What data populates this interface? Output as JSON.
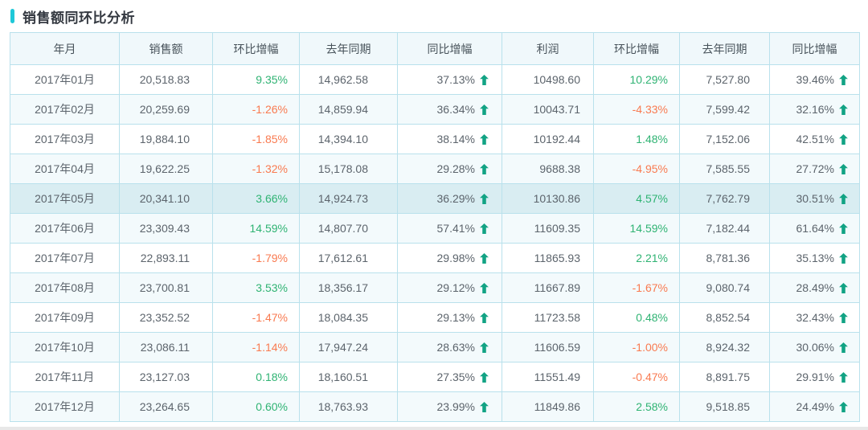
{
  "page": {
    "title": "销售额同环比分析",
    "accent_color": "#1ec8d8"
  },
  "colors": {
    "positive": "#2fb373",
    "negative": "#f97a50",
    "arrow": "#12a384",
    "border": "#b9e1ec",
    "header_bg": "#f0f8fb",
    "stripe_bg": "#f3fafc",
    "highlight_bg": "#d9edf2"
  },
  "icons": {
    "yoy_indicator": "arrow-up-icon"
  },
  "table": {
    "highlighted_row_index": 4,
    "columns": [
      {
        "key": "month",
        "label": "年月",
        "type": "month"
      },
      {
        "key": "sales",
        "label": "销售额",
        "type": "num"
      },
      {
        "key": "sales_mom",
        "label": "环比增幅",
        "type": "pct"
      },
      {
        "key": "sales_last_year",
        "label": "去年同期",
        "type": "num"
      },
      {
        "key": "sales_yoy",
        "label": "同比增幅",
        "type": "yoy"
      },
      {
        "key": "profit",
        "label": "利润",
        "type": "num"
      },
      {
        "key": "profit_mom",
        "label": "环比增幅",
        "type": "pct"
      },
      {
        "key": "profit_last_year",
        "label": "去年同期",
        "type": "num"
      },
      {
        "key": "profit_yoy",
        "label": "同比增幅",
        "type": "yoy"
      }
    ],
    "rows": [
      {
        "month": "2017年01月",
        "sales": "20,518.83",
        "sales_mom": "9.35%",
        "sales_last_year": "14,962.58",
        "sales_yoy": "37.13%",
        "profit": "10498.60",
        "profit_mom": "10.29%",
        "profit_last_year": "7,527.80",
        "profit_yoy": "39.46%"
      },
      {
        "month": "2017年02月",
        "sales": "20,259.69",
        "sales_mom": "-1.26%",
        "sales_last_year": "14,859.94",
        "sales_yoy": "36.34%",
        "profit": "10043.71",
        "profit_mom": "-4.33%",
        "profit_last_year": "7,599.42",
        "profit_yoy": "32.16%"
      },
      {
        "month": "2017年03月",
        "sales": "19,884.10",
        "sales_mom": "-1.85%",
        "sales_last_year": "14,394.10",
        "sales_yoy": "38.14%",
        "profit": "10192.44",
        "profit_mom": "1.48%",
        "profit_last_year": "7,152.06",
        "profit_yoy": "42.51%"
      },
      {
        "month": "2017年04月",
        "sales": "19,622.25",
        "sales_mom": "-1.32%",
        "sales_last_year": "15,178.08",
        "sales_yoy": "29.28%",
        "profit": "9688.38",
        "profit_mom": "-4.95%",
        "profit_last_year": "7,585.55",
        "profit_yoy": "27.72%"
      },
      {
        "month": "2017年05月",
        "sales": "20,341.10",
        "sales_mom": "3.66%",
        "sales_last_year": "14,924.73",
        "sales_yoy": "36.29%",
        "profit": "10130.86",
        "profit_mom": "4.57%",
        "profit_last_year": "7,762.79",
        "profit_yoy": "30.51%"
      },
      {
        "month": "2017年06月",
        "sales": "23,309.43",
        "sales_mom": "14.59%",
        "sales_last_year": "14,807.70",
        "sales_yoy": "57.41%",
        "profit": "11609.35",
        "profit_mom": "14.59%",
        "profit_last_year": "7,182.44",
        "profit_yoy": "61.64%"
      },
      {
        "month": "2017年07月",
        "sales": "22,893.11",
        "sales_mom": "-1.79%",
        "sales_last_year": "17,612.61",
        "sales_yoy": "29.98%",
        "profit": "11865.93",
        "profit_mom": "2.21%",
        "profit_last_year": "8,781.36",
        "profit_yoy": "35.13%"
      },
      {
        "month": "2017年08月",
        "sales": "23,700.81",
        "sales_mom": "3.53%",
        "sales_last_year": "18,356.17",
        "sales_yoy": "29.12%",
        "profit": "11667.89",
        "profit_mom": "-1.67%",
        "profit_last_year": "9,080.74",
        "profit_yoy": "28.49%"
      },
      {
        "month": "2017年09月",
        "sales": "23,352.52",
        "sales_mom": "-1.47%",
        "sales_last_year": "18,084.35",
        "sales_yoy": "29.13%",
        "profit": "11723.58",
        "profit_mom": "0.48%",
        "profit_last_year": "8,852.54",
        "profit_yoy": "32.43%"
      },
      {
        "month": "2017年10月",
        "sales": "23,086.11",
        "sales_mom": "-1.14%",
        "sales_last_year": "17,947.24",
        "sales_yoy": "28.63%",
        "profit": "11606.59",
        "profit_mom": "-1.00%",
        "profit_last_year": "8,924.32",
        "profit_yoy": "30.06%"
      },
      {
        "month": "2017年11月",
        "sales": "23,127.03",
        "sales_mom": "0.18%",
        "sales_last_year": "18,160.51",
        "sales_yoy": "27.35%",
        "profit": "11551.49",
        "profit_mom": "-0.47%",
        "profit_last_year": "8,891.75",
        "profit_yoy": "29.91%"
      },
      {
        "month": "2017年12月",
        "sales": "23,264.65",
        "sales_mom": "0.60%",
        "sales_last_year": "18,763.93",
        "sales_yoy": "23.99%",
        "profit": "11849.86",
        "profit_mom": "2.58%",
        "profit_last_year": "9,518.85",
        "profit_yoy": "24.49%"
      }
    ]
  }
}
